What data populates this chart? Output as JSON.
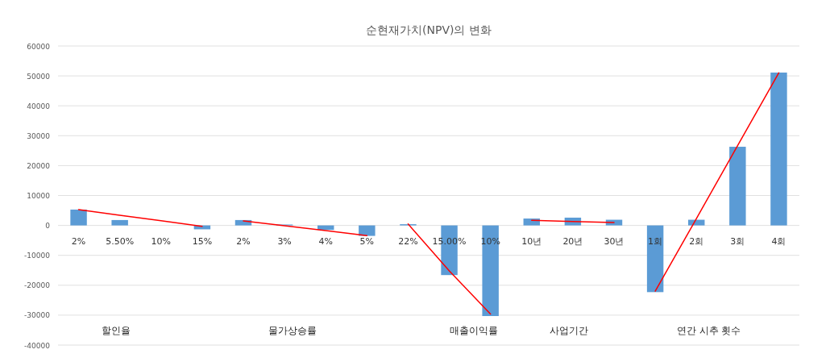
{
  "chart_data": {
    "type": "bar",
    "title": "순현재가치(NPV)의 변화",
    "categories": [
      "2%",
      "5.50%",
      "10%",
      "15%",
      "2%",
      "3%",
      "4%",
      "5%",
      "22%",
      "15.00%",
      "10%",
      "10년",
      "20년",
      "30년",
      "1회",
      "2회",
      "3회",
      "4회"
    ],
    "series": [
      {
        "color": "#5b9bd5",
        "values": [
          5300,
          1800,
          0,
          -1300,
          1800,
          300,
          -1500,
          -3500,
          400,
          -16600,
          -30300,
          2300,
          2600,
          1900,
          -22300,
          1900,
          26300,
          51100
        ]
      },
      {
        "type": "line",
        "color": "#ff0000",
        "values": [
          5300,
          3400,
          1600,
          -300,
          null,
          null,
          null,
          null,
          null,
          null,
          null,
          null,
          null,
          null,
          null,
          null,
          null,
          null
        ]
      },
      {
        "type": "line",
        "color": "#ff0000",
        "values": [
          null,
          null,
          null,
          null,
          1500,
          -100,
          -1700,
          -3400,
          null,
          null,
          null,
          null,
          null,
          null,
          null,
          null,
          null,
          null
        ]
      },
      {
        "type": "line",
        "color": "#ff0000",
        "values": [
          null,
          null,
          null,
          null,
          null,
          null,
          null,
          null,
          500,
          -15200,
          -29600,
          null,
          null,
          null,
          null,
          null,
          null,
          null
        ]
      },
      {
        "type": "line",
        "color": "#ff0000",
        "values": [
          null,
          null,
          null,
          null,
          null,
          null,
          null,
          null,
          null,
          null,
          null,
          1700,
          1300,
          1000,
          null,
          null,
          null,
          null
        ]
      },
      {
        "type": "line",
        "color": "#ff0000",
        "values": [
          null,
          null,
          null,
          null,
          null,
          null,
          null,
          null,
          null,
          null,
          null,
          null,
          null,
          null,
          -22000,
          2300,
          26700,
          51000
        ]
      }
    ],
    "ylim": [
      -40000,
      60000
    ],
    "yticks": [
      -40000,
      -30000,
      -20000,
      -10000,
      0,
      10000,
      20000,
      30000,
      40000,
      50000,
      60000
    ],
    "grid": "y",
    "annotations": [
      "할인율",
      "물가상승률",
      "매출이익률",
      "사업기간",
      "연간 시추 횟수"
    ]
  }
}
